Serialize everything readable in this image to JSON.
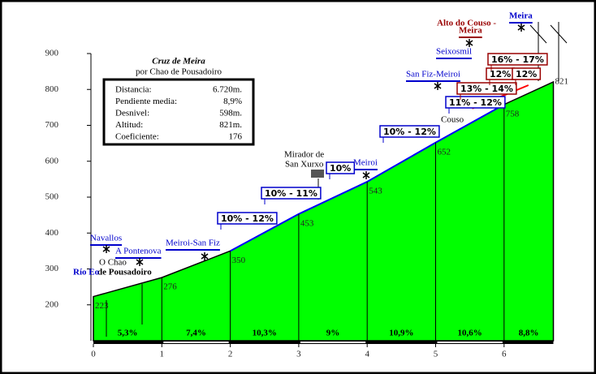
{
  "chart_data": {
    "type": "area",
    "title": "Cruz de Meira",
    "subtitle": "por Chao de Pousadoiro",
    "x": [
      0,
      1,
      2,
      3,
      4,
      5,
      6,
      6.72
    ],
    "values": [
      223,
      276,
      350,
      453,
      543,
      652,
      758,
      821
    ],
    "color": "#00ff00",
    "xlim": [
      0,
      6.72
    ],
    "ylim": [
      100,
      900
    ],
    "xticks": [
      0,
      1,
      2,
      3,
      4,
      5,
      6
    ],
    "yticks": [
      200,
      300,
      400,
      500,
      600,
      700,
      800,
      900
    ],
    "stats": [
      {
        "label": "Distancia:",
        "value": "6.720m."
      },
      {
        "label": "Pendiente media:",
        "value": "8,9%"
      },
      {
        "label": "Desnivel:",
        "value": "598m."
      },
      {
        "label": "Altitud:",
        "value": "821m."
      },
      {
        "label": "Coeficiente:",
        "value": "176"
      }
    ],
    "segment_labels": [
      "5,3%",
      "7,4%",
      "10,3%",
      "9%",
      "10,9%",
      "10,6%",
      "8,8%"
    ],
    "places": [
      "Navallos",
      "A Pontenova",
      "O Chao",
      "de Pousadoiro",
      "Río Eo",
      "Meiroi-San Fiz",
      "Mirador de",
      "San Xurxo",
      "Meiroi",
      "Couso",
      "San Fiz-Meiroi",
      "Seixosmil",
      "Alto do Couso -",
      "Meira",
      "Meira"
    ],
    "gradients": [
      "10% - 12%",
      "10% - 11%",
      "10%",
      "10% - 12%",
      "11% - 12%",
      "13% - 14%",
      "12%",
      "16% - 17%",
      "12%"
    ]
  }
}
